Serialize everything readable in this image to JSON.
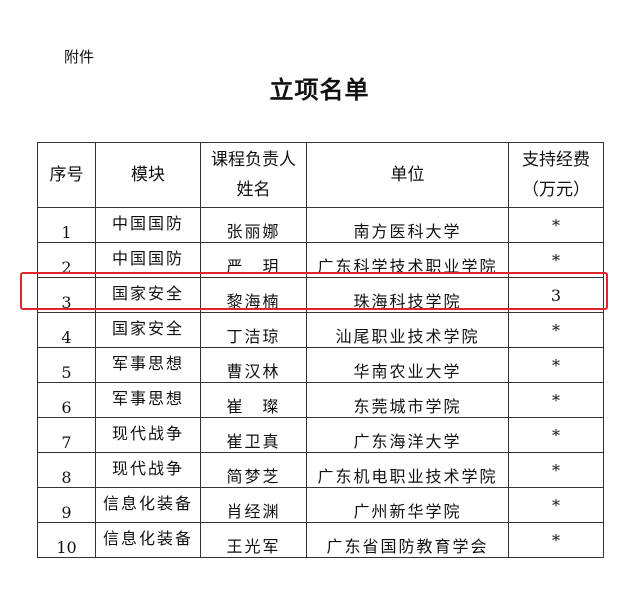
{
  "attachment_label": "附件",
  "title": "立项名单",
  "table": {
    "headers": [
      "序号",
      "模块",
      "课程负责人姓名",
      "单位",
      "支持经费（万元）"
    ],
    "header_lines": {
      "name": [
        "课程负责人",
        "姓名"
      ],
      "fund": [
        "支持经费",
        "（万元）"
      ]
    },
    "rows": [
      {
        "no": "1",
        "module": "中国国防",
        "name": "张丽娜",
        "org": "南方医科大学",
        "fund": "*"
      },
      {
        "no": "2",
        "module": "中国国防",
        "name": "严　玥",
        "org": "广东科学技术职业学院",
        "fund": "*"
      },
      {
        "no": "3",
        "module": "国家安全",
        "name": "黎海楠",
        "org": "珠海科技学院",
        "fund": "3"
      },
      {
        "no": "4",
        "module": "国家安全",
        "name": "丁洁琼",
        "org": "汕尾职业技术学院",
        "fund": "*"
      },
      {
        "no": "5",
        "module": "军事思想",
        "name": "曹汉林",
        "org": "华南农业大学",
        "fund": "*"
      },
      {
        "no": "6",
        "module": "军事思想",
        "name": "崔　璨",
        "org": "东莞城市学院",
        "fund": "*"
      },
      {
        "no": "7",
        "module": "现代战争",
        "name": "崔卫真",
        "org": "广东海洋大学",
        "fund": "*"
      },
      {
        "no": "8",
        "module": "现代战争",
        "name": "简梦芝",
        "org": "广东机电职业技术学院",
        "fund": "*"
      },
      {
        "no": "9",
        "module": "信息化装备",
        "name": "肖经渊",
        "org": "广州新华学院",
        "fund": "*"
      },
      {
        "no": "10",
        "module": "信息化装备",
        "name": "王光军",
        "org": "广东省国防教育学会",
        "fund": "*"
      }
    ]
  },
  "highlight": {
    "row": "3",
    "color": "#e0242a"
  }
}
